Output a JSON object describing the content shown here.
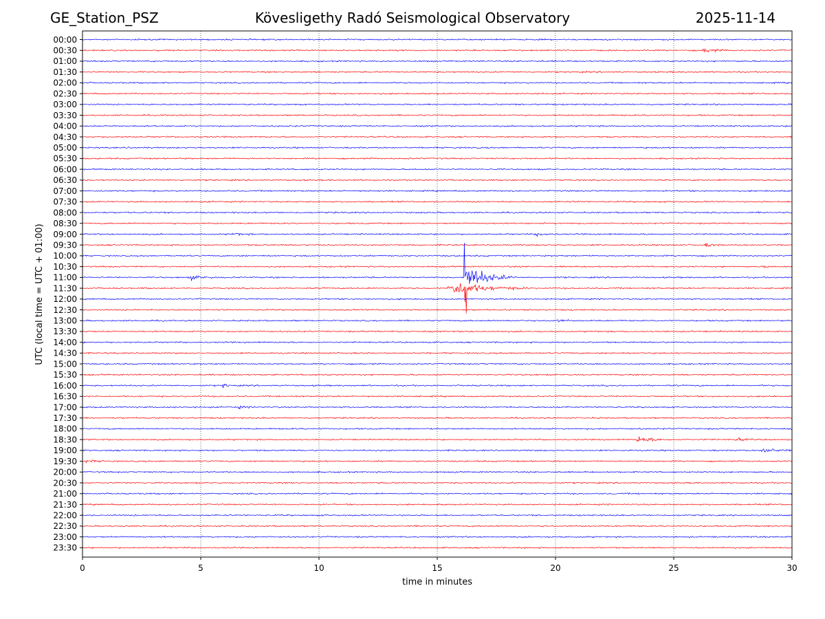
{
  "header": {
    "station": "GE_Station_PSZ",
    "observatory": "Kövesligethy Radó Seismological Observatory",
    "date": "2025-11-14"
  },
  "chart_data": {
    "type": "helicorder",
    "title": "Kövesligethy Radó Seismological Observatory",
    "xlabel": "time in minutes",
    "ylabel": "UTC (local time = UTC + 01:00)",
    "xlim": [
      0,
      30
    ],
    "x_ticks": [
      0,
      5,
      10,
      15,
      20,
      25,
      30
    ],
    "grid_x": [
      5,
      10,
      15,
      20,
      25
    ],
    "row_labels": [
      "00:00",
      "00:30",
      "01:00",
      "01:30",
      "02:00",
      "02:30",
      "03:00",
      "03:30",
      "04:00",
      "04:30",
      "05:00",
      "05:30",
      "06:00",
      "06:30",
      "07:00",
      "07:30",
      "08:00",
      "08:30",
      "09:00",
      "09:30",
      "10:00",
      "10:30",
      "11:00",
      "11:30",
      "12:00",
      "12:30",
      "13:00",
      "13:30",
      "14:00",
      "14:30",
      "15:00",
      "15:30",
      "16:00",
      "16:30",
      "17:00",
      "17:30",
      "18:00",
      "18:30",
      "19:00",
      "19:30",
      "20:00",
      "20:30",
      "21:00",
      "21:30",
      "22:00",
      "22:30",
      "23:00",
      "23:30"
    ],
    "trace_colors": [
      "#0000ff",
      "#ff0000"
    ],
    "noise_amplitude": 1.2,
    "events": [
      {
        "row": 1,
        "start_min": 26.2,
        "duration_min": 1.2,
        "amplitude": 4
      },
      {
        "row": 18,
        "start_min": 6.3,
        "duration_min": 1.0,
        "amplitude": 2
      },
      {
        "row": 18,
        "start_min": 19.1,
        "duration_min": 1.0,
        "amplitude": 3
      },
      {
        "row": 19,
        "start_min": 26.3,
        "duration_min": 0.8,
        "amplitude": 3
      },
      {
        "row": 21,
        "start_min": 28.8,
        "duration_min": 0.4,
        "amplitude": 2
      },
      {
        "row": 22,
        "start_min": 4.5,
        "duration_min": 1.4,
        "amplitude": 4
      },
      {
        "row": 22,
        "start_min": 16.1,
        "duration_min": 2.2,
        "amplitude": 22,
        "peak_up": 75
      },
      {
        "row": 23,
        "start_min": 15.4,
        "duration_min": 3.6,
        "amplitude": 11
      },
      {
        "row": 23,
        "start_min": 16.15,
        "duration_min": 0.12,
        "amplitude": 3,
        "peak_down": 50
      },
      {
        "row": 26,
        "start_min": 19.9,
        "duration_min": 0.9,
        "amplitude": 3
      },
      {
        "row": 32,
        "start_min": 5.9,
        "duration_min": 0.6,
        "amplitude": 4
      },
      {
        "row": 34,
        "start_min": 6.5,
        "duration_min": 0.9,
        "amplitude": 2
      },
      {
        "row": 37,
        "start_min": 23.4,
        "duration_min": 1.4,
        "amplitude": 6
      },
      {
        "row": 37,
        "start_min": 27.6,
        "duration_min": 0.8,
        "amplitude": 3
      },
      {
        "row": 38,
        "start_min": 28.7,
        "duration_min": 1.3,
        "amplitude": 5
      },
      {
        "row": 39,
        "start_min": 0.1,
        "duration_min": 0.8,
        "amplitude": 3
      },
      {
        "row": 40,
        "start_min": 15.7,
        "duration_min": 0.3,
        "amplitude": 2
      }
    ]
  }
}
